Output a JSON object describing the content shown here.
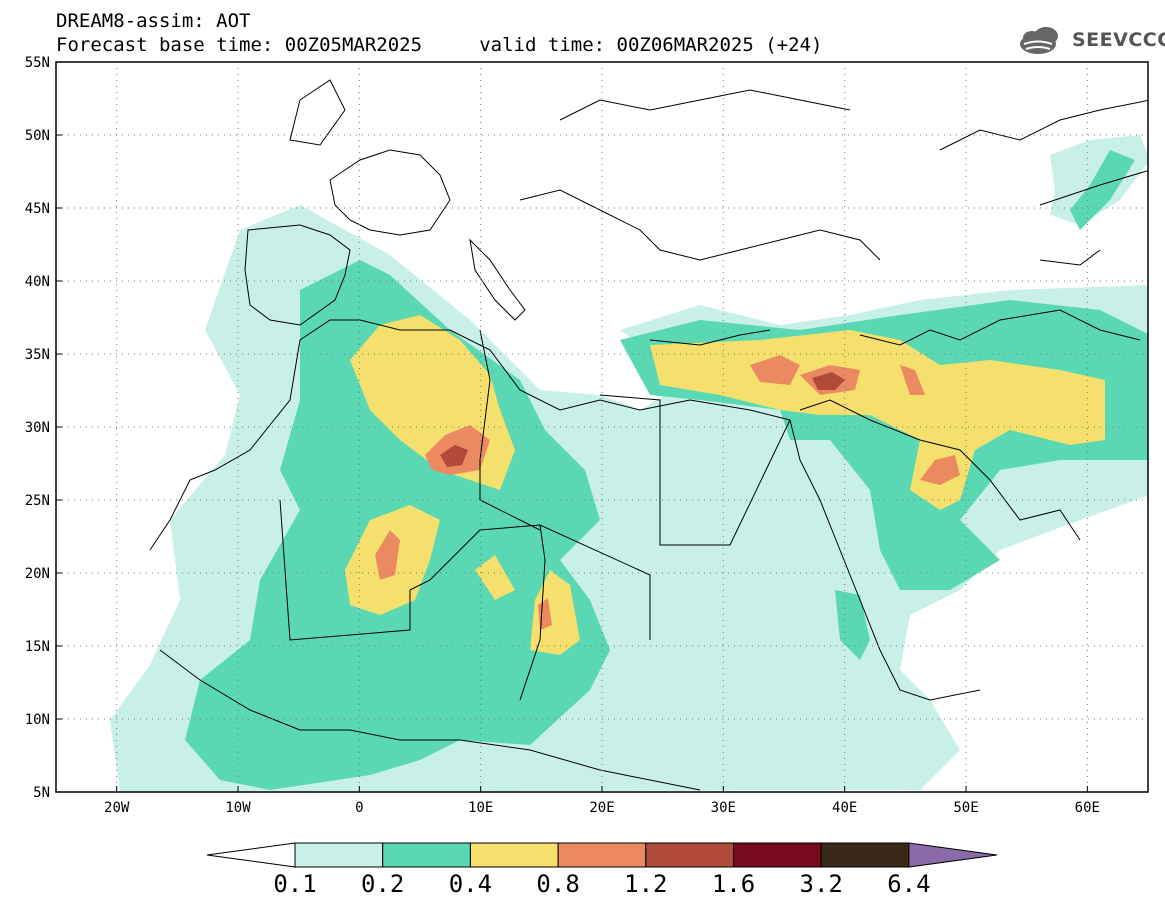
{
  "header": {
    "line1": "DREAM8-assim: AOT",
    "line2": "Forecast base time: 00Z05MAR2025     valid time: 00Z06MAR2025 (+24)"
  },
  "logo": {
    "text": "SEEVCCC",
    "icon": "cloud-icon"
  },
  "map": {
    "lon_range": [
      -25,
      65
    ],
    "lat_range": [
      5,
      55
    ],
    "lon_ticks": [
      "20W",
      "10W",
      "0",
      "10E",
      "20E",
      "30E",
      "40E",
      "50E",
      "60E"
    ],
    "lat_ticks": [
      "55N",
      "50N",
      "45N",
      "40N",
      "35N",
      "30N",
      "25N",
      "20N",
      "15N",
      "10N",
      "5N"
    ]
  },
  "colorbar": {
    "labels": [
      "0.1",
      "0.2",
      "0.4",
      "0.8",
      "1.2",
      "1.6",
      "3.2",
      "6.4"
    ],
    "colors": {
      "below": "#ffffff",
      "bins": [
        "#c8f0e8",
        "#5ad8b4",
        "#f5e06e",
        "#eb8a60",
        "#b04a3a",
        "#780a1e",
        "#3a2818"
      ],
      "above": "#8a6aa8"
    }
  }
}
